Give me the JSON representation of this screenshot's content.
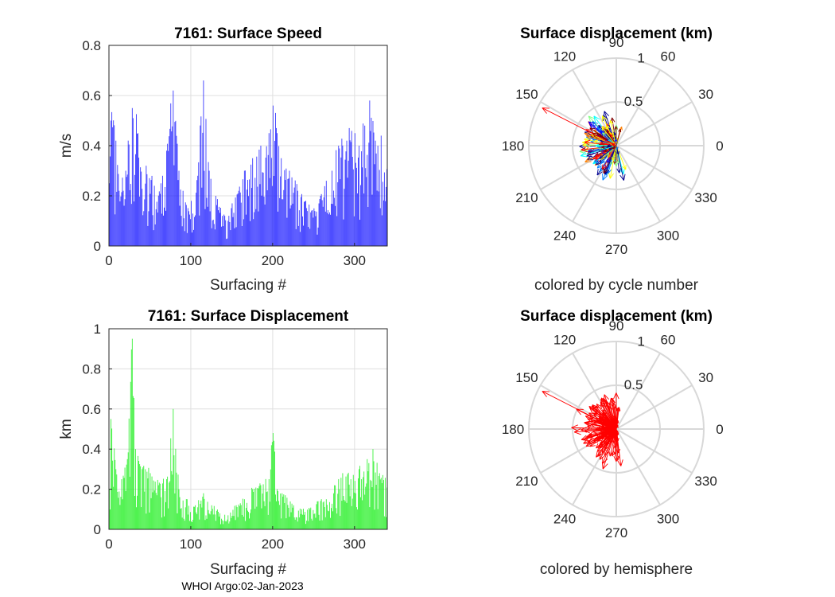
{
  "footer": "WHOI Argo:02-Jan-2023",
  "colors": {
    "speed_bar": "#1f1fff",
    "displacement_bar": "#22ee22",
    "hemisphere_arrow": "#ff0000"
  },
  "chart_data": [
    {
      "id": "speed",
      "type": "bar",
      "title": "7161: Surface Speed",
      "xlabel": "Surfacing #",
      "ylabel": "m/s",
      "xlim": [
        0,
        340
      ],
      "ylim": [
        0,
        0.8
      ],
      "xticks": [
        0,
        100,
        200,
        300
      ],
      "xtick_labels": [
        "0",
        "100",
        "200",
        "300"
      ],
      "yticks": [
        0,
        0.2,
        0.4,
        0.6,
        0.8
      ],
      "ytick_labels": [
        "0",
        "0.2",
        "0.4",
        "0.6",
        "0.8"
      ],
      "grid": true,
      "n": 340,
      "anchors": [
        [
          0,
          0.25
        ],
        [
          2,
          0.5
        ],
        [
          8,
          0.42
        ],
        [
          12,
          0.22
        ],
        [
          20,
          0.3
        ],
        [
          28,
          0.55
        ],
        [
          35,
          0.45
        ],
        [
          45,
          0.32
        ],
        [
          55,
          0.24
        ],
        [
          65,
          0.28
        ],
        [
          70,
          0.38
        ],
        [
          78,
          0.62
        ],
        [
          85,
          0.3
        ],
        [
          90,
          0.22
        ],
        [
          100,
          0.18
        ],
        [
          108,
          0.28
        ],
        [
          115,
          0.66
        ],
        [
          122,
          0.3
        ],
        [
          130,
          0.2
        ],
        [
          138,
          0.12
        ],
        [
          145,
          0.1
        ],
        [
          150,
          0.17
        ],
        [
          158,
          0.22
        ],
        [
          165,
          0.3
        ],
        [
          175,
          0.35
        ],
        [
          185,
          0.4
        ],
        [
          195,
          0.45
        ],
        [
          200,
          0.56
        ],
        [
          205,
          0.45
        ],
        [
          210,
          0.35
        ],
        [
          220,
          0.3
        ],
        [
          230,
          0.22
        ],
        [
          240,
          0.18
        ],
        [
          250,
          0.15
        ],
        [
          258,
          0.2
        ],
        [
          265,
          0.26
        ],
        [
          272,
          0.3
        ],
        [
          280,
          0.4
        ],
        [
          290,
          0.42
        ],
        [
          300,
          0.45
        ],
        [
          305,
          0.4
        ],
        [
          312,
          0.48
        ],
        [
          318,
          0.58
        ],
        [
          325,
          0.42
        ],
        [
          332,
          0.44
        ],
        [
          340,
          0.3
        ]
      ]
    },
    {
      "id": "displacement",
      "type": "bar",
      "title": "7161: Surface Displacement",
      "xlabel": "Surfacing #",
      "ylabel": "km",
      "xlim": [
        0,
        340
      ],
      "ylim": [
        0,
        1
      ],
      "xticks": [
        0,
        100,
        200,
        300
      ],
      "xtick_labels": [
        "0",
        "100",
        "200",
        "300"
      ],
      "yticks": [
        0,
        0.2,
        0.4,
        0.6,
        0.8,
        1
      ],
      "ytick_labels": [
        "0",
        "0.2",
        "0.4",
        "0.6",
        "0.8",
        "1"
      ],
      "grid": true,
      "n": 340,
      "anchors": [
        [
          0,
          0.2
        ],
        [
          2,
          0.55
        ],
        [
          8,
          0.3
        ],
        [
          15,
          0.25
        ],
        [
          22,
          0.35
        ],
        [
          28,
          0.95
        ],
        [
          32,
          0.4
        ],
        [
          40,
          0.3
        ],
        [
          50,
          0.28
        ],
        [
          60,
          0.22
        ],
        [
          70,
          0.25
        ],
        [
          78,
          0.6
        ],
        [
          85,
          0.2
        ],
        [
          95,
          0.15
        ],
        [
          105,
          0.12
        ],
        [
          115,
          0.18
        ],
        [
          125,
          0.12
        ],
        [
          135,
          0.08
        ],
        [
          145,
          0.07
        ],
        [
          155,
          0.12
        ],
        [
          165,
          0.15
        ],
        [
          175,
          0.2
        ],
        [
          185,
          0.22
        ],
        [
          195,
          0.25
        ],
        [
          200,
          0.48
        ],
        [
          205,
          0.2
        ],
        [
          215,
          0.17
        ],
        [
          225,
          0.12
        ],
        [
          235,
          0.1
        ],
        [
          245,
          0.1
        ],
        [
          255,
          0.14
        ],
        [
          265,
          0.15
        ],
        [
          275,
          0.22
        ],
        [
          285,
          0.28
        ],
        [
          295,
          0.25
        ],
        [
          305,
          0.3
        ],
        [
          315,
          0.35
        ],
        [
          322,
          0.4
        ],
        [
          330,
          0.28
        ],
        [
          340,
          0.22
        ]
      ]
    },
    {
      "id": "polar-cycle",
      "type": "polar",
      "title": "Surface displacement (km)",
      "caption": "colored by cycle number",
      "rlim": [
        0,
        1
      ],
      "rticks": [
        0.5,
        1
      ],
      "rtick_labels": [
        "0.5",
        "1"
      ],
      "angles": [
        0,
        30,
        60,
        90,
        120,
        150,
        180,
        210,
        240,
        270,
        300,
        330
      ],
      "angle_labels": [
        "0",
        "30",
        "60",
        "90",
        "120",
        "150",
        "180",
        "210",
        "240",
        "270",
        "300",
        "330"
      ],
      "color_by": "cycle number",
      "colormap": [
        "#00008f",
        "#0000ff",
        "#0080ff",
        "#00ffff",
        "#80ff80",
        "#ffff00",
        "#ff8000",
        "#ff0000",
        "#800000"
      ],
      "n": 300,
      "highlight": {
        "angle": 153,
        "r": 0.95
      }
    },
    {
      "id": "polar-hemisphere",
      "type": "polar",
      "title": "Surface displacement (km)",
      "caption": "colored by hemisphere",
      "rlim": [
        0,
        1
      ],
      "rticks": [
        0.5,
        1
      ],
      "rtick_labels": [
        "0.5",
        "1"
      ],
      "angles": [
        0,
        30,
        60,
        90,
        120,
        150,
        180,
        210,
        240,
        270,
        300,
        330
      ],
      "angle_labels": [
        "0",
        "30",
        "60",
        "90",
        "120",
        "150",
        "180",
        "210",
        "240",
        "270",
        "300",
        "330"
      ],
      "color_by": "hemisphere",
      "n": 300,
      "highlight": {
        "angle": 153,
        "r": 0.95
      }
    }
  ]
}
